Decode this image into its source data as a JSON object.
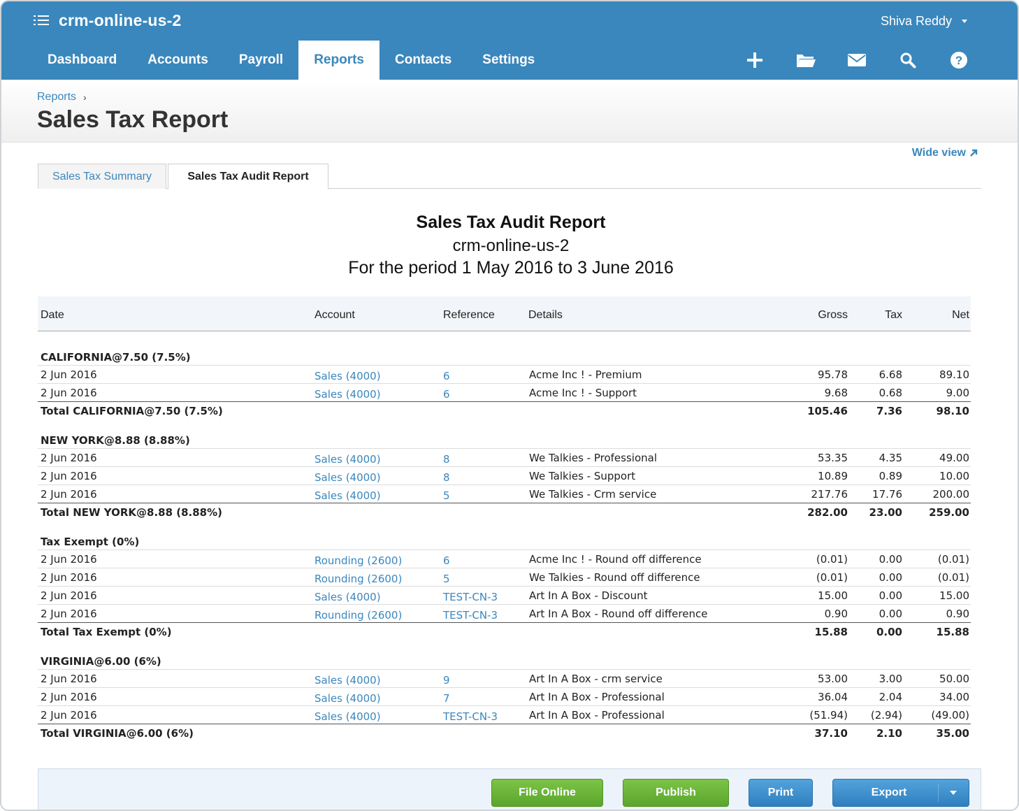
{
  "app": {
    "org_name": "crm-online-us-2",
    "user_name": "Shiva Reddy",
    "colors": {
      "brand": "#3a87bd",
      "green": "#6bb43a",
      "blue": "#3b8ccb"
    }
  },
  "nav": {
    "tabs": [
      {
        "label": "Dashboard"
      },
      {
        "label": "Accounts"
      },
      {
        "label": "Payroll"
      },
      {
        "label": "Reports",
        "active": true
      },
      {
        "label": "Contacts"
      },
      {
        "label": "Settings"
      }
    ],
    "tools": [
      "add-icon",
      "folder-icon",
      "mail-icon",
      "search-icon",
      "help-icon"
    ]
  },
  "page": {
    "breadcrumb": "Reports",
    "breadcrumb_sep": "›",
    "title": "Sales Tax Report",
    "wide_view": "Wide view",
    "tabs": [
      {
        "label": "Sales Tax Summary"
      },
      {
        "label": "Sales Tax Audit Report",
        "active": true
      }
    ]
  },
  "report": {
    "title": "Sales Tax Audit Report",
    "org": "crm-online-us-2",
    "period": "For the period 1 May 2016 to 3 June 2016",
    "columns": {
      "date": "Date",
      "account": "Account",
      "reference": "Reference",
      "details": "Details",
      "gross": "Gross",
      "tax": "Tax",
      "net": "Net"
    },
    "groups": [
      {
        "name": "CALIFORNIA@7.50 (7.5%)",
        "rows": [
          {
            "date": "2 Jun 2016",
            "account": "Sales (4000)",
            "ref": "6",
            "details": "Acme Inc ! - Premium",
            "gross": "95.78",
            "tax": "6.68",
            "net": "89.10"
          },
          {
            "date": "2 Jun 2016",
            "account": "Sales (4000)",
            "ref": "6",
            "details": "Acme Inc ! - Support",
            "gross": "9.68",
            "tax": "0.68",
            "net": "9.00"
          }
        ],
        "total": {
          "label": "Total CALIFORNIA@7.50 (7.5%)",
          "gross": "105.46",
          "tax": "7.36",
          "net": "98.10"
        }
      },
      {
        "name": "NEW YORK@8.88 (8.88%)",
        "rows": [
          {
            "date": "2 Jun 2016",
            "account": "Sales (4000)",
            "ref": "8",
            "details": "We Talkies - Professional",
            "gross": "53.35",
            "tax": "4.35",
            "net": "49.00"
          },
          {
            "date": "2 Jun 2016",
            "account": "Sales (4000)",
            "ref": "8",
            "details": "We Talkies - Support",
            "gross": "10.89",
            "tax": "0.89",
            "net": "10.00"
          },
          {
            "date": "2 Jun 2016",
            "account": "Sales (4000)",
            "ref": "5",
            "details": "We Talkies - Crm service",
            "gross": "217.76",
            "tax": "17.76",
            "net": "200.00"
          }
        ],
        "total": {
          "label": "Total NEW YORK@8.88 (8.88%)",
          "gross": "282.00",
          "tax": "23.00",
          "net": "259.00"
        }
      },
      {
        "name": "Tax Exempt (0%)",
        "rows": [
          {
            "date": "2 Jun 2016",
            "account": "Rounding (2600)",
            "ref": "6",
            "details": "Acme Inc ! - Round off difference",
            "gross": "(0.01)",
            "tax": "0.00",
            "net": "(0.01)"
          },
          {
            "date": "2 Jun 2016",
            "account": "Rounding (2600)",
            "ref": "5",
            "details": "We Talkies - Round off difference",
            "gross": "(0.01)",
            "tax": "0.00",
            "net": "(0.01)"
          },
          {
            "date": "2 Jun 2016",
            "account": "Sales (4000)",
            "ref": "TEST-CN-3",
            "details": "Art In A Box - Discount",
            "gross": "15.00",
            "tax": "0.00",
            "net": "15.00"
          },
          {
            "date": "2 Jun 2016",
            "account": "Rounding (2600)",
            "ref": "TEST-CN-3",
            "details": "Art In A Box - Round off difference",
            "gross": "0.90",
            "tax": "0.00",
            "net": "0.90"
          }
        ],
        "total": {
          "label": "Total Tax Exempt (0%)",
          "gross": "15.88",
          "tax": "0.00",
          "net": "15.88"
        }
      },
      {
        "name": "VIRGINIA@6.00 (6%)",
        "rows": [
          {
            "date": "2 Jun 2016",
            "account": "Sales (4000)",
            "ref": "9",
            "details": "Art In A Box - crm service",
            "gross": "53.00",
            "tax": "3.00",
            "net": "50.00"
          },
          {
            "date": "2 Jun 2016",
            "account": "Sales (4000)",
            "ref": "7",
            "details": "Art In A Box - Professional",
            "gross": "36.04",
            "tax": "2.04",
            "net": "34.00"
          },
          {
            "date": "2 Jun 2016",
            "account": "Sales (4000)",
            "ref": "TEST-CN-3",
            "details": "Art In A Box - Professional",
            "gross": "(51.94)",
            "tax": "(2.94)",
            "net": "(49.00)"
          }
        ],
        "total": {
          "label": "Total VIRGINIA@6.00 (6%)",
          "gross": "37.10",
          "tax": "2.10",
          "net": "35.00"
        }
      }
    ]
  },
  "actions": {
    "file_online": "File Online",
    "publish": "Publish",
    "print": "Print",
    "export": "Export"
  }
}
